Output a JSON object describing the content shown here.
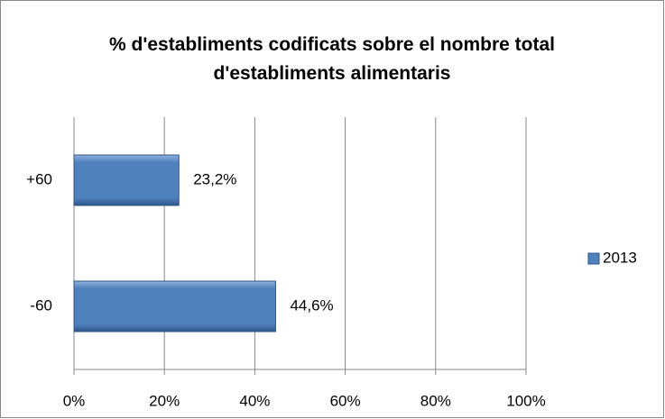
{
  "chart_data": {
    "type": "bar",
    "orientation": "horizontal",
    "title": "% d'establiments codificats sobre el nombre total d'establiments alimentaris",
    "categories": [
      "+60",
      "-60"
    ],
    "series": [
      {
        "name": "2013",
        "color": "#4f81bd",
        "values": [
          23.2,
          44.6
        ],
        "value_labels": [
          "23,2%",
          "44,6%"
        ]
      }
    ],
    "xlim": [
      0,
      100
    ],
    "xticks": [
      {
        "value": 0,
        "label": "0%"
      },
      {
        "value": 20,
        "label": "20%"
      },
      {
        "value": 40,
        "label": "40%"
      },
      {
        "value": 60,
        "label": "60%"
      },
      {
        "value": 80,
        "label": "80%"
      },
      {
        "value": 100,
        "label": "100%"
      }
    ],
    "grid": true,
    "legend": "right"
  }
}
